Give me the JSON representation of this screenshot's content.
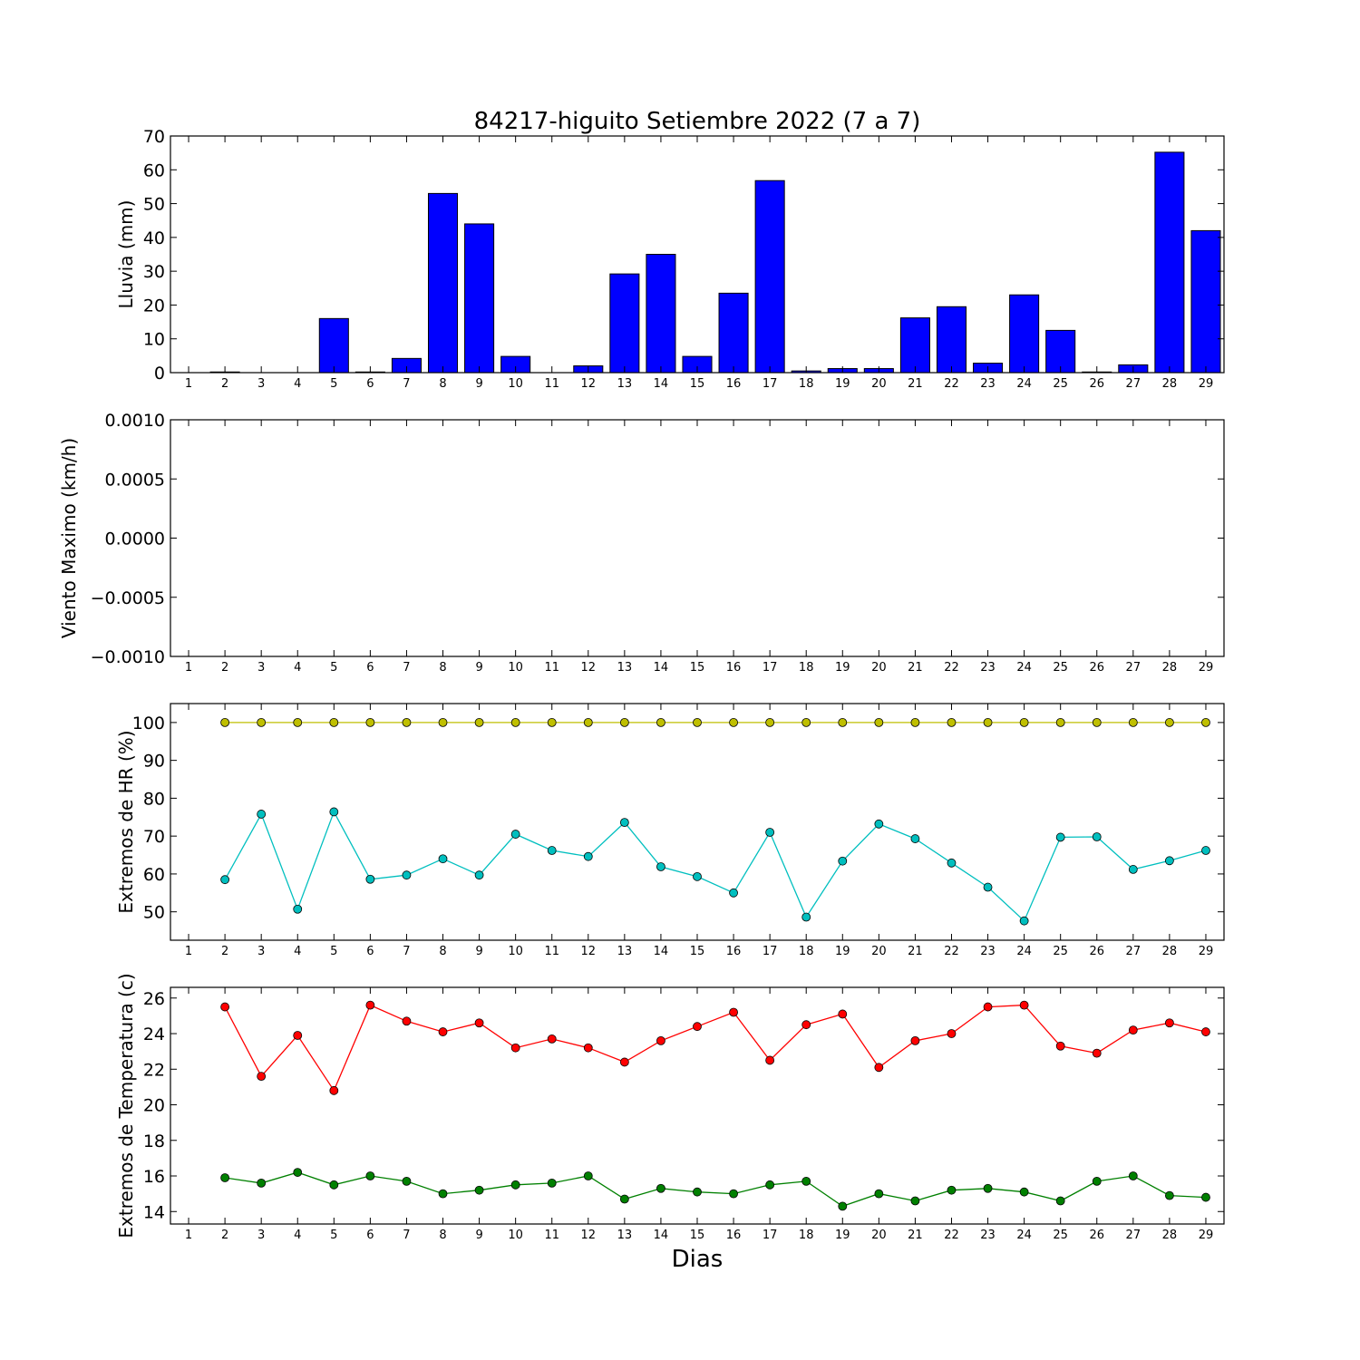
{
  "title": "84217-higuito Setiembre 2022  (7 a 7)",
  "xlabel": "Dias",
  "chart_data": [
    {
      "type": "bar",
      "ylabel": "Lluvia (mm)",
      "ylim": [
        0,
        70
      ],
      "yticks": [
        "0",
        "10",
        "20",
        "30",
        "40",
        "50",
        "60",
        "70"
      ],
      "xticks": [
        "1",
        "2",
        "3",
        "4",
        "5",
        "6",
        "7",
        "8",
        "9",
        "10",
        "11",
        "12",
        "13",
        "14",
        "15",
        "16",
        "17",
        "18",
        "19",
        "20",
        "21",
        "22",
        "23",
        "24",
        "25",
        "26",
        "27",
        "28",
        "29"
      ],
      "series": [
        {
          "color": "#0000ff",
          "x": [
            1,
            2,
            3,
            4,
            5,
            6,
            7,
            8,
            9,
            10,
            11,
            12,
            13,
            14,
            15,
            16,
            17,
            18,
            19,
            20,
            21,
            22,
            23,
            24,
            25,
            26,
            27,
            28,
            29
          ],
          "values": [
            0,
            0.2,
            0,
            0,
            16.0,
            0.2,
            4.2,
            53.0,
            44.0,
            4.8,
            0,
            2.0,
            29.2,
            35.0,
            4.8,
            23.5,
            56.8,
            0.5,
            1.2,
            1.2,
            16.2,
            19.5,
            2.8,
            23.0,
            12.5,
            0.2,
            2.3,
            65.2,
            42.0
          ]
        }
      ]
    },
    {
      "type": "line",
      "ylabel": "Viento Maximo (km/h)",
      "ylim": [
        -0.001,
        0.001
      ],
      "yticks": [
        "−0.0010",
        "−0.0005",
        "0.0000",
        "0.0005",
        "0.0010"
      ],
      "xticks": [
        "1",
        "2",
        "3",
        "4",
        "5",
        "6",
        "7",
        "8",
        "9",
        "10",
        "11",
        "12",
        "13",
        "14",
        "15",
        "16",
        "17",
        "18",
        "19",
        "20",
        "21",
        "22",
        "23",
        "24",
        "25",
        "26",
        "27",
        "28",
        "29"
      ],
      "series": []
    },
    {
      "type": "line",
      "ylabel": "Extremos de HR (%)",
      "ylim": [
        42.5,
        105
      ],
      "yticks": [
        "50",
        "60",
        "70",
        "80",
        "90",
        "100"
      ],
      "xticks": [
        "1",
        "2",
        "3",
        "4",
        "5",
        "6",
        "7",
        "8",
        "9",
        "10",
        "11",
        "12",
        "13",
        "14",
        "15",
        "16",
        "17",
        "18",
        "19",
        "20",
        "21",
        "22",
        "23",
        "24",
        "25",
        "26",
        "27",
        "28",
        "29"
      ],
      "series": [
        {
          "color": "#bfbf00",
          "x": [
            2,
            3,
            4,
            5,
            6,
            7,
            8,
            9,
            10,
            11,
            12,
            13,
            14,
            15,
            16,
            17,
            18,
            19,
            20,
            21,
            22,
            23,
            24,
            25,
            26,
            27,
            28,
            29
          ],
          "values": [
            100,
            100,
            100,
            100,
            100,
            100,
            100,
            100,
            100,
            100,
            100,
            100,
            100,
            100,
            100,
            100,
            100,
            100,
            100,
            100,
            100,
            100,
            100,
            100,
            100,
            100,
            100,
            100
          ]
        },
        {
          "color": "#00bfbf",
          "x": [
            2,
            3,
            4,
            5,
            6,
            7,
            8,
            9,
            10,
            11,
            12,
            13,
            14,
            15,
            16,
            17,
            18,
            19,
            20,
            21,
            22,
            23,
            24,
            25,
            26,
            27,
            28,
            29
          ],
          "values": [
            58.5,
            75.8,
            50.7,
            76.4,
            58.6,
            59.7,
            64.0,
            59.7,
            70.5,
            66.2,
            64.6,
            73.6,
            61.9,
            59.3,
            55.0,
            71.0,
            48.6,
            63.4,
            73.2,
            69.3,
            62.9,
            56.5,
            47.6,
            69.7,
            69.8,
            61.2,
            63.5,
            66.2
          ]
        }
      ]
    },
    {
      "type": "line",
      "ylabel": "Extremos de Temperatura (c)",
      "ylim": [
        13.3,
        26.6
      ],
      "yticks": [
        "14",
        "16",
        "18",
        "20",
        "22",
        "24",
        "26"
      ],
      "xticks": [
        "1",
        "2",
        "3",
        "4",
        "5",
        "6",
        "7",
        "8",
        "9",
        "10",
        "11",
        "12",
        "13",
        "14",
        "15",
        "16",
        "17",
        "18",
        "19",
        "20",
        "21",
        "22",
        "23",
        "24",
        "25",
        "26",
        "27",
        "28",
        "29"
      ],
      "series": [
        {
          "color": "#ff0000",
          "x": [
            2,
            3,
            4,
            5,
            6,
            7,
            8,
            9,
            10,
            11,
            12,
            13,
            14,
            15,
            16,
            17,
            18,
            19,
            20,
            21,
            22,
            23,
            24,
            25,
            26,
            27,
            28,
            29
          ],
          "values": [
            25.5,
            21.6,
            23.9,
            20.8,
            25.6,
            24.7,
            24.1,
            24.6,
            23.2,
            23.7,
            23.2,
            22.4,
            23.6,
            24.4,
            25.2,
            22.5,
            24.5,
            25.1,
            22.1,
            23.6,
            24.0,
            25.5,
            25.6,
            23.3,
            22.9,
            24.2,
            24.6,
            24.1
          ]
        },
        {
          "color": "#008000",
          "x": [
            2,
            3,
            4,
            5,
            6,
            7,
            8,
            9,
            10,
            11,
            12,
            13,
            14,
            15,
            16,
            17,
            18,
            19,
            20,
            21,
            22,
            23,
            24,
            25,
            26,
            27,
            28,
            29
          ],
          "values": [
            15.9,
            15.6,
            16.2,
            15.5,
            16.0,
            15.7,
            15.0,
            15.2,
            15.5,
            15.6,
            16.0,
            14.7,
            15.3,
            15.1,
            15.0,
            15.5,
            15.7,
            14.3,
            15.0,
            14.6,
            15.2,
            15.3,
            15.1,
            14.6,
            15.7,
            16.0,
            14.9,
            14.8
          ]
        }
      ]
    }
  ]
}
